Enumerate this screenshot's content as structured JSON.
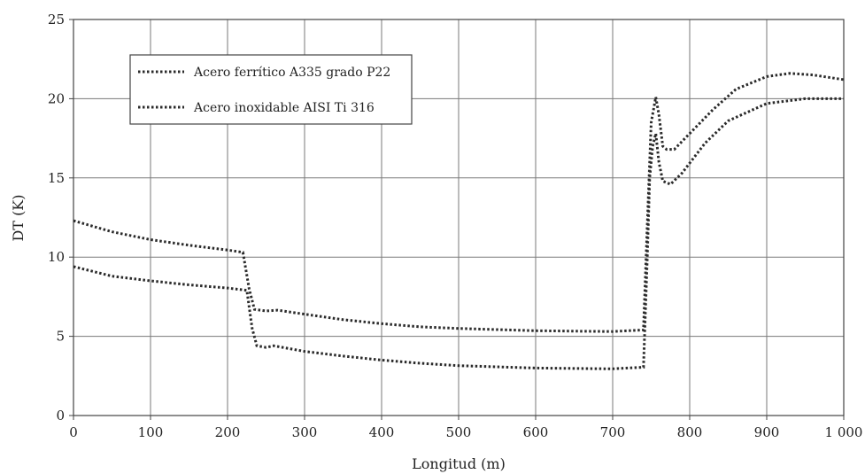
{
  "chart_data": {
    "type": "line",
    "title": "",
    "xlabel": "Longitud (m)",
    "ylabel": "DT (K)",
    "xlim": [
      0,
      1000
    ],
    "ylim": [
      0,
      25
    ],
    "grid": true,
    "legend_position": "top-left",
    "x_ticks": [
      0,
      100,
      200,
      300,
      400,
      500,
      600,
      700,
      800,
      900,
      1000
    ],
    "x_tick_labels": [
      "0",
      "100",
      "200",
      "300",
      "400",
      "500",
      "600",
      "700",
      "800",
      "900",
      "1 000"
    ],
    "y_ticks": [
      0,
      5,
      10,
      15,
      20,
      25
    ],
    "y_tick_labels": [
      "0",
      "5",
      "10",
      "15",
      "20",
      "25"
    ],
    "series": [
      {
        "name": "Acero ferrítico A335 grado P22",
        "points": [
          [
            0,
            12.3
          ],
          [
            50,
            11.6
          ],
          [
            100,
            11.1
          ],
          [
            150,
            10.75
          ],
          [
            200,
            10.45
          ],
          [
            220,
            10.3
          ],
          [
            228,
            8.0
          ],
          [
            235,
            6.7
          ],
          [
            250,
            6.6
          ],
          [
            265,
            6.65
          ],
          [
            300,
            6.4
          ],
          [
            350,
            6.05
          ],
          [
            400,
            5.8
          ],
          [
            450,
            5.6
          ],
          [
            500,
            5.5
          ],
          [
            600,
            5.35
          ],
          [
            700,
            5.3
          ],
          [
            740,
            5.4
          ],
          [
            745,
            12.0
          ],
          [
            750,
            18.5
          ],
          [
            756,
            20.1
          ],
          [
            760,
            19.0
          ],
          [
            765,
            17.0
          ],
          [
            770,
            16.8
          ],
          [
            780,
            16.8
          ],
          [
            800,
            17.8
          ],
          [
            830,
            19.3
          ],
          [
            860,
            20.6
          ],
          [
            900,
            21.4
          ],
          [
            930,
            21.6
          ],
          [
            960,
            21.5
          ],
          [
            1000,
            21.2
          ]
        ]
      },
      {
        "name": "Acero inoxidable AISI Ti 316",
        "points": [
          [
            0,
            9.4
          ],
          [
            50,
            8.8
          ],
          [
            100,
            8.5
          ],
          [
            150,
            8.25
          ],
          [
            200,
            8.05
          ],
          [
            225,
            7.9
          ],
          [
            232,
            5.5
          ],
          [
            238,
            4.4
          ],
          [
            250,
            4.3
          ],
          [
            260,
            4.4
          ],
          [
            300,
            4.05
          ],
          [
            350,
            3.75
          ],
          [
            400,
            3.5
          ],
          [
            450,
            3.3
          ],
          [
            500,
            3.15
          ],
          [
            600,
            3.0
          ],
          [
            700,
            2.95
          ],
          [
            740,
            3.05
          ],
          [
            745,
            10.0
          ],
          [
            748,
            15.0
          ],
          [
            752,
            17.0
          ],
          [
            756,
            17.8
          ],
          [
            760,
            16.0
          ],
          [
            765,
            14.8
          ],
          [
            775,
            14.6
          ],
          [
            790,
            15.3
          ],
          [
            820,
            17.2
          ],
          [
            850,
            18.6
          ],
          [
            900,
            19.7
          ],
          [
            950,
            20.0
          ],
          [
            1000,
            20.0
          ]
        ]
      }
    ]
  }
}
